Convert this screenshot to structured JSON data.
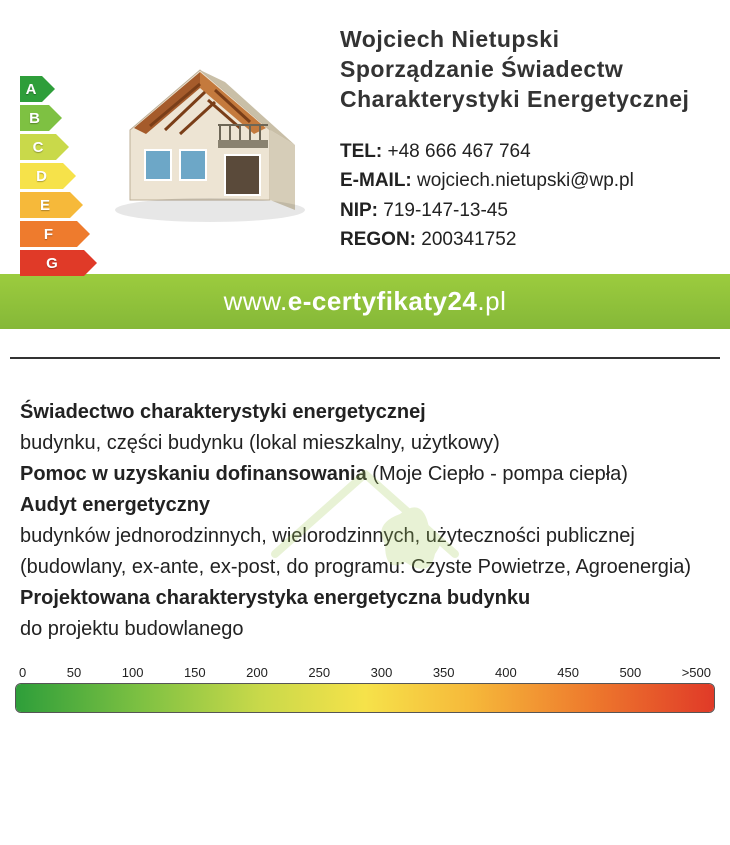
{
  "header": {
    "name": "Wojciech Nietupski",
    "line2": "Sporządzanie Świadectw",
    "line3": "Charakterystyki Energetycznej",
    "tel_label": "TEL:",
    "tel": "+48 666 467 764",
    "email_label": "E-MAIL:",
    "email": "wojciech.nietupski@wp.pl",
    "nip_label": "NIP:",
    "nip": "719-147-13-45",
    "regon_label": "REGON:",
    "regon": "200341752"
  },
  "url": {
    "prefix": "www.",
    "main": "e-certyfikaty24",
    "suffix": ".pl"
  },
  "rating_labels": [
    "A",
    "B",
    "C",
    "D",
    "E",
    "F",
    "G"
  ],
  "rating_colors": [
    "#2e9e3a",
    "#7ec142",
    "#c9d94a",
    "#f6e24a",
    "#f6b93a",
    "#ee7b2d",
    "#e03a28"
  ],
  "services": {
    "l1b": "Świadectwo charakterystyki energetycznej",
    "l2": "budynku, części budynku (lokal mieszkalny, użytkowy)",
    "l3b": "Pomoc w uzyskaniu dofinansowania",
    "l3r": " (Moje Ciepło - pompa ciepła)",
    "l4b": "Audyt energetyczny",
    "l5": "budynków jednorodzinnych, wielorodzinnych, użyteczności publicznej",
    "l6": "(budowlany, ex-ante, ex-post, do programu: Czyste Powietrze, Agroenergia)",
    "l7b": "Projektowana charakterystyka energetyczna budynku",
    "l8": "do projektu budowlanego"
  },
  "scale": {
    "ticks": [
      "0",
      "50",
      "100",
      "150",
      "200",
      "250",
      "300",
      "350",
      "400",
      "450",
      "500",
      ">500"
    ],
    "gradient_stops": [
      {
        "pct": 0,
        "color": "#2e9e3a"
      },
      {
        "pct": 18,
        "color": "#7ec142"
      },
      {
        "pct": 35,
        "color": "#c9d94a"
      },
      {
        "pct": 50,
        "color": "#f6e24a"
      },
      {
        "pct": 65,
        "color": "#f6b93a"
      },
      {
        "pct": 82,
        "color": "#ee7b2d"
      },
      {
        "pct": 100,
        "color": "#e03a28"
      }
    ]
  },
  "colors": {
    "url_bar": "#8bc34a",
    "watermark_green": "#a5cc5a"
  }
}
